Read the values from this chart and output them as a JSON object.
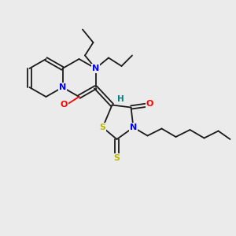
{
  "bg_color": "#ebebeb",
  "bond_color": "#1a1a1a",
  "N_color": "#0000ff",
  "O_color": "#ff0000",
  "S_color": "#b8b800",
  "H_color": "#008080",
  "lw": 1.3,
  "fs": 7.5,
  "xlim": [
    0,
    10
  ],
  "ylim": [
    0,
    10
  ]
}
